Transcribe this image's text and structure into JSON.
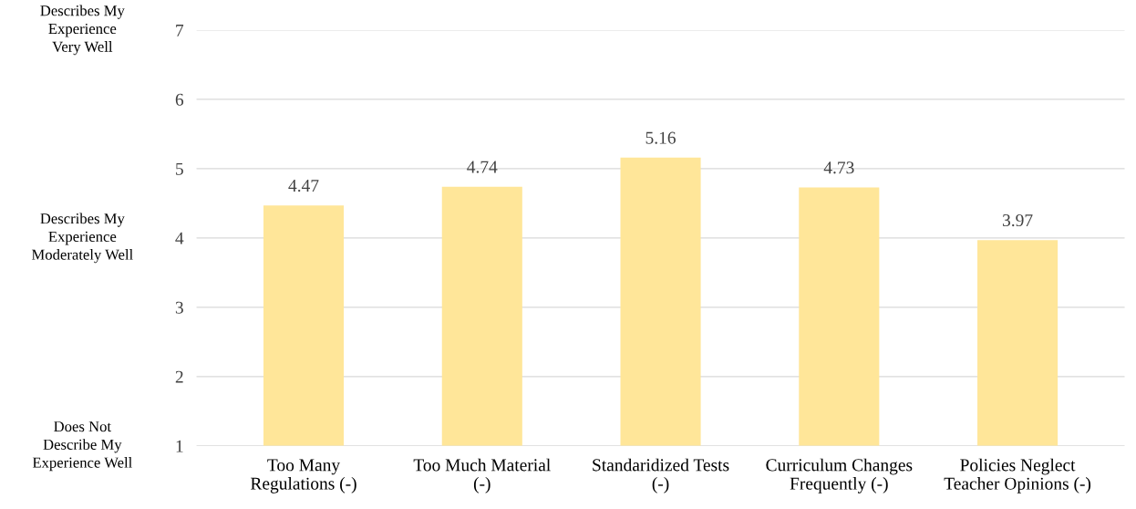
{
  "chart_data": {
    "type": "bar",
    "categories": [
      "Too Many\nRegulations (-)",
      "Too Much Material\n(-)",
      "Standaridized Tests\n(-)",
      "Curriculum Changes\nFrequently (-)",
      "Policies Neglect\nTeacher Opinions (-)"
    ],
    "values": [
      4.47,
      4.74,
      5.16,
      4.73,
      3.97
    ],
    "color": "#ffe699",
    "ylim": [
      1,
      7
    ],
    "yticks": [
      1,
      2,
      3,
      4,
      5,
      6,
      7
    ],
    "grid": "y",
    "data_labels": true,
    "legend": false,
    "annotations": [
      "Describes My\nExperience\nVery Well",
      "Describes My\nExperience\nModerately Well",
      "Does Not\nDescribe My\nExperience Well"
    ]
  }
}
